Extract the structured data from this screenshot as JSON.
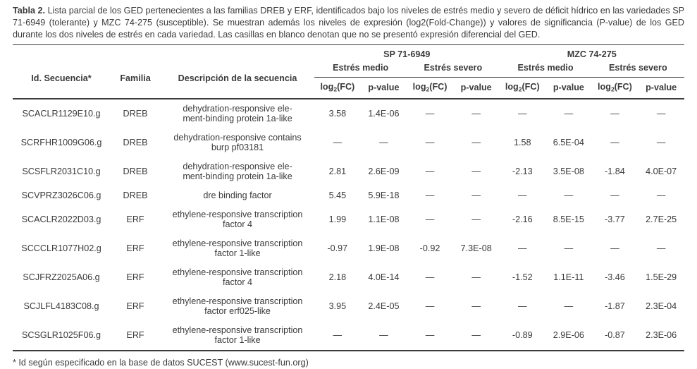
{
  "colors": {
    "text": "#3a3a3a",
    "rule": "#3c3c3c",
    "background": "#ffffff"
  },
  "caption": {
    "label": "Tabla 2.",
    "text": "Lista parcial de los GED pertenecientes a las familias DREB y ERF, identificados bajo los niveles de estrés medio y severo de déficit hídrico en las variedades SP 71-6949 (tolerante) y MZC 74-275 (susceptible).  Se muestran además los niveles de expresión (log2(Fold-Change)) y valores de significancia (P-value) de los GED durante los dos niveles de estrés en cada variedad.  Las casillas en blanco denotan que no se presentó expresión diferencial del GED."
  },
  "table": {
    "columns": {
      "id": "Id. Secuencia*",
      "family": "Familia",
      "description": "Descripción de la secuencia"
    },
    "variety_groups": [
      "SP 71-6949",
      "MZC 74-275"
    ],
    "stress_levels": [
      "Estrés medio",
      "Estrés severo",
      "Estrés medio",
      "Estrés severo"
    ],
    "metrics": {
      "logfc": {
        "pre": "log",
        "sub": "2",
        "post": "(FC)"
      },
      "pvalue": "p-value"
    },
    "empty_marker": "—",
    "rows": [
      {
        "id": "SCACLR1129E10.g",
        "family": "DREB",
        "description_lines": [
          "dehydration-responsive ele-",
          "ment-binding protein 1a-like"
        ],
        "values": [
          "3.58",
          "1.4E-06",
          "—",
          "—",
          "—",
          "—",
          "—",
          "—"
        ]
      },
      {
        "id": "SCRFHR1009G06.g",
        "family": "DREB",
        "description_lines": [
          "dehydration-responsive contains",
          "burp pf03181"
        ],
        "values": [
          "—",
          "—",
          "—",
          "—",
          "1.58",
          "6.5E-04",
          "—",
          "—"
        ]
      },
      {
        "id": "SCSFLR2031C10.g",
        "family": "DREB",
        "description_lines": [
          "dehydration-responsive ele-",
          "ment-binding protein 1a-like"
        ],
        "values": [
          "2.81",
          "2.6E-09",
          "—",
          "—",
          "-2.13",
          "3.5E-08",
          "-1.84",
          "4.0E-07"
        ]
      },
      {
        "id": "SCVPRZ3026C06.g",
        "family": "DREB",
        "description_lines": [
          "dre binding factor"
        ],
        "values": [
          "5.45",
          "5.9E-18",
          "—",
          "—",
          "—",
          "—",
          "—",
          "—"
        ]
      },
      {
        "id": "SCACLR2022D03.g",
        "family": "ERF",
        "description_lines": [
          "ethylene-responsive transcription",
          "factor 4"
        ],
        "values": [
          "1.99",
          "1.1E-08",
          "—",
          "—",
          "-2.16",
          "8.5E-15",
          "-3.77",
          "2.7E-25"
        ]
      },
      {
        "id": "SCCCLR1077H02.g",
        "family": "ERF",
        "description_lines": [
          "ethylene-responsive transcription",
          "factor 1-like"
        ],
        "values": [
          "-0.97",
          "1.9E-08",
          "-0.92",
          "7.3E-08",
          "—",
          "—",
          "—",
          "—"
        ]
      },
      {
        "id": "SCJFRZ2025A06.g",
        "family": "ERF",
        "description_lines": [
          "ethylene-responsive transcription",
          "factor 4"
        ],
        "values": [
          "2.18",
          "4.0E-14",
          "—",
          "—",
          "-1.52",
          "1.1E-11",
          "-3.46",
          "1.5E-29"
        ]
      },
      {
        "id": "SCJLFL4183C08.g",
        "family": "ERF",
        "description_lines": [
          "ethylene-responsive transcription",
          "factor erf025-like"
        ],
        "values": [
          "3.95",
          "2.4E-05",
          "—",
          "—",
          "—",
          "—",
          "-1.87",
          "2.3E-04"
        ]
      },
      {
        "id": "SCSGLR1025F06.g",
        "family": "ERF",
        "description_lines": [
          "ethylene-responsive transcription",
          "factor 1-like"
        ],
        "values": [
          "—",
          "—",
          "—",
          "—",
          "-0.89",
          "2.9E-06",
          "-0.87",
          "2.3E-06"
        ]
      }
    ]
  },
  "footnote": "* Id según especificado en la base de datos SUCEST (www.sucest-fun.org)"
}
